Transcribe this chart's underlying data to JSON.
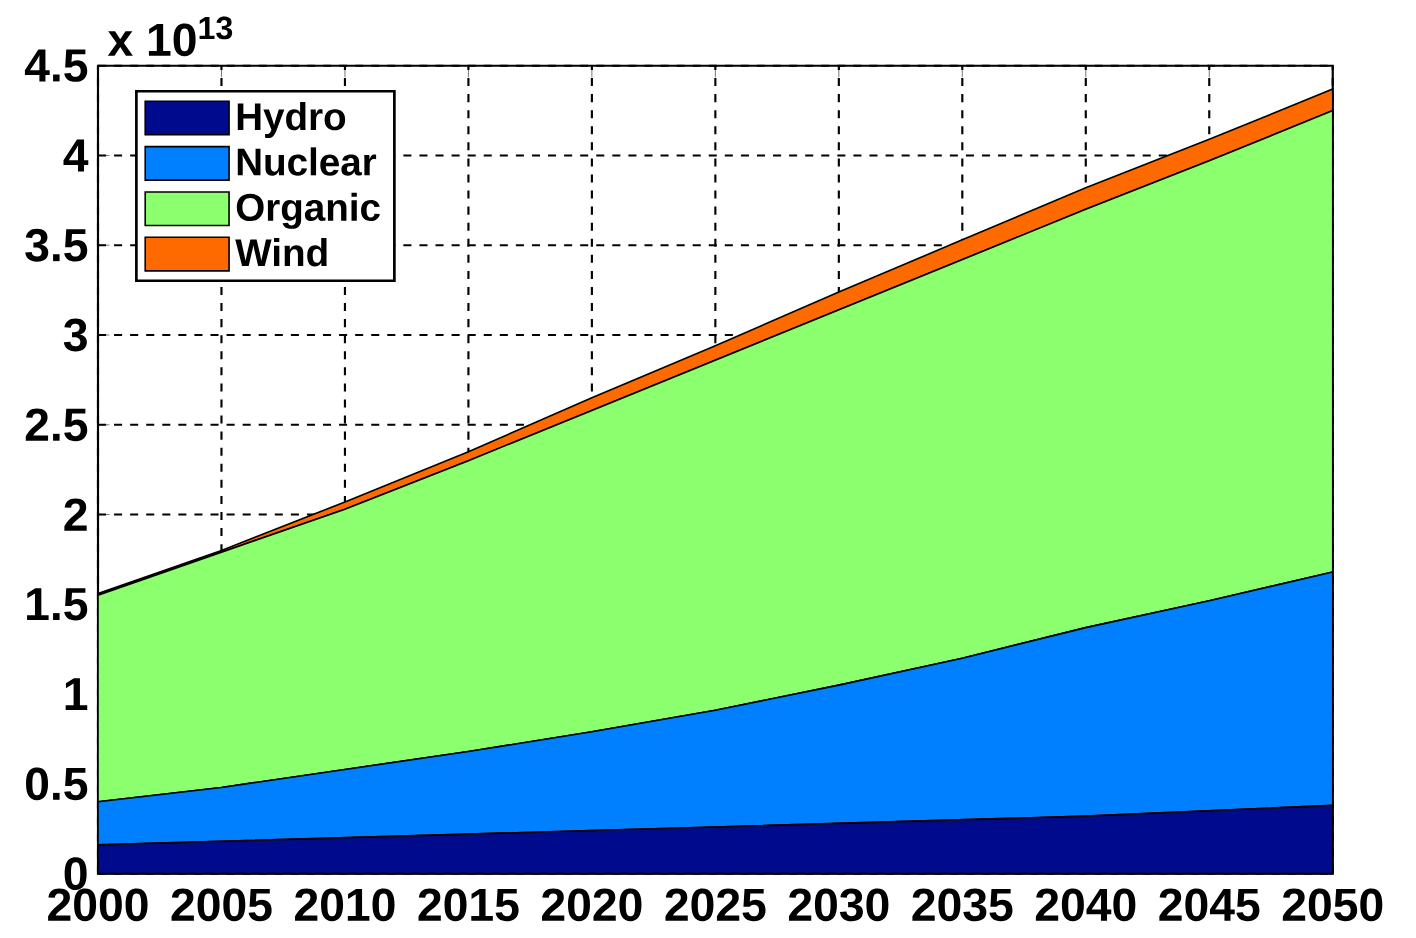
{
  "chart_data": {
    "type": "area",
    "stacked": true,
    "x": [
      2000,
      2005,
      2010,
      2015,
      2020,
      2025,
      2030,
      2035,
      2040,
      2045,
      2050
    ],
    "series": [
      {
        "name": "Hydro",
        "color": "#000a8c",
        "values": [
          0.16,
          0.18,
          0.2,
          0.22,
          0.24,
          0.26,
          0.28,
          0.3,
          0.32,
          0.35,
          0.38
        ]
      },
      {
        "name": "Nuclear",
        "color": "#0080ff",
        "values": [
          0.24,
          0.3,
          0.38,
          0.46,
          0.55,
          0.65,
          0.77,
          0.9,
          1.05,
          1.17,
          1.3
        ]
      },
      {
        "name": "Organic",
        "color": "#8cff6e",
        "values": [
          1.15,
          1.31,
          1.45,
          1.62,
          1.79,
          1.95,
          2.09,
          2.22,
          2.33,
          2.45,
          2.57
        ]
      },
      {
        "name": "Wind",
        "color": "#ff6a00",
        "values": [
          0.01,
          0.01,
          0.04,
          0.05,
          0.07,
          0.08,
          0.1,
          0.11,
          0.12,
          0.12,
          0.12
        ]
      }
    ],
    "xlim": [
      2000,
      2050
    ],
    "xticks": [
      2000,
      2005,
      2010,
      2015,
      2020,
      2025,
      2030,
      2035,
      2040,
      2045,
      2050
    ],
    "ylim": [
      0,
      4.5
    ],
    "yticks": [
      0,
      0.5,
      1,
      1.5,
      2,
      2.5,
      3,
      3.5,
      4,
      4.5
    ],
    "annotations": [
      "x 10$^{13}$"
    ],
    "grid": true,
    "legend": "top left"
  }
}
